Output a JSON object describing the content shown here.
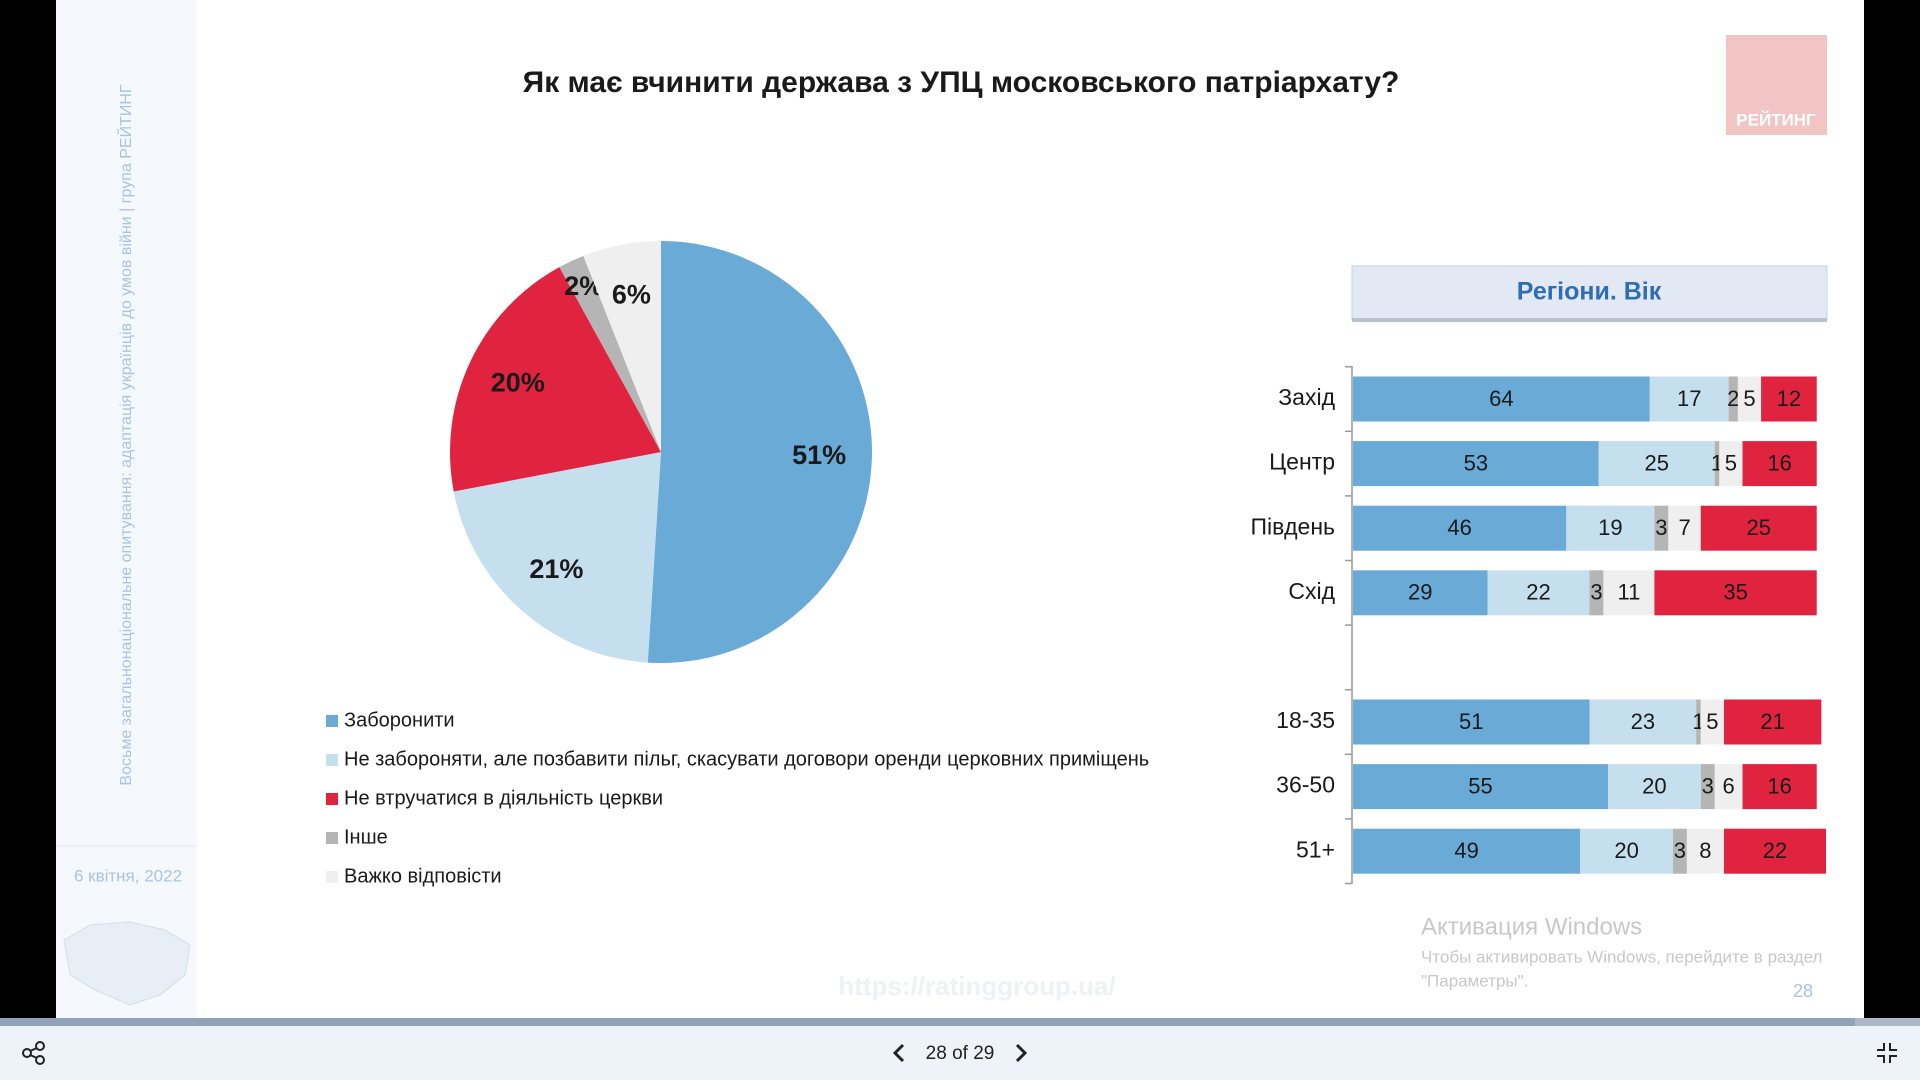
{
  "slide": {
    "title": "Як має вчинити держава з УПЦ московського патріархату?",
    "logo": "РЕЙТИНГ",
    "sidebar_text": "Восьме загальнонаціональне опитування: адаптація українців до умов війни | група РЕЙТИНГ",
    "date": "6 квітня, 2022",
    "watermark": "https://ratinggroup.ua/",
    "page_number": "28"
  },
  "windows_notice": {
    "title": "Активация Windows",
    "line1": "Чтобы активировать Windows, перейдите в раздел",
    "line2": "\"Параметры\"."
  },
  "viewer": {
    "page_indicator": "28 of 29"
  },
  "chart_data": [
    {
      "type": "pie",
      "categories": [
        "Заборонити",
        "Не забороняти, але позбавити пільг, скасувати договори оренди церковних приміщень",
        "Не втручатися в діяльність церкви",
        "Інше",
        "Важко відповісти"
      ],
      "values": [
        51,
        21,
        20,
        2,
        6
      ],
      "value_labels": [
        "51%",
        "21%",
        "20%",
        "2%",
        "6%"
      ],
      "colors": [
        "#6aaad6",
        "#c6dfee",
        "#e0233f",
        "#b5b5b5",
        "#efefef"
      ]
    },
    {
      "type": "stacked-bar-horizontal",
      "title": "Регіони. Вік",
      "categories": [
        "Захід",
        "Центр",
        "Південь",
        "Схід",
        null,
        "18-35",
        "36-50",
        "51+"
      ],
      "series": [
        {
          "color": "#6aaad6",
          "values": [
            64,
            53,
            46,
            29,
            null,
            51,
            55,
            49
          ]
        },
        {
          "color": "#c6dfee",
          "values": [
            17,
            25,
            19,
            22,
            null,
            23,
            20,
            20
          ]
        },
        {
          "color": "#b5b5b5",
          "values": [
            2,
            1,
            3,
            3,
            null,
            1,
            3,
            3
          ]
        },
        {
          "color": "#efefef",
          "values": [
            5,
            5,
            7,
            11,
            null,
            5,
            6,
            8
          ]
        },
        {
          "color": "#e0233f",
          "values": [
            12,
            16,
            25,
            35,
            null,
            21,
            16,
            22
          ]
        }
      ]
    }
  ]
}
